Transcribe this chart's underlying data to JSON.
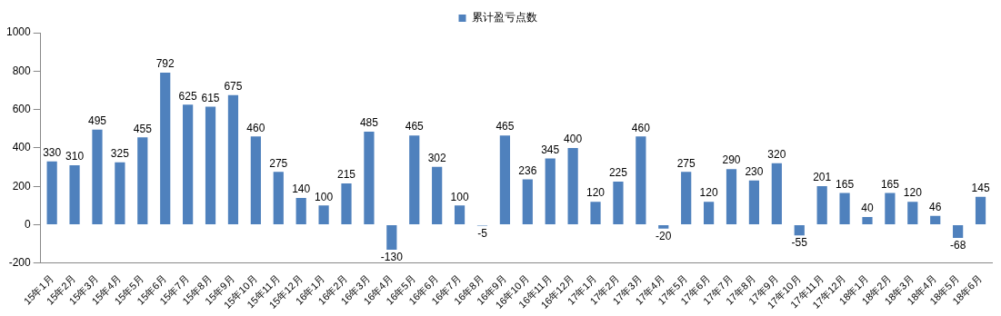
{
  "chart_data": {
    "type": "bar",
    "categories": [
      "15年1月",
      "15年2月",
      "15年3月",
      "15年4月",
      "15年5月",
      "15年6月",
      "15年7月",
      "15年8月",
      "15年9月",
      "15年10月",
      "15年11月",
      "15年12月",
      "16年1月",
      "16年2月",
      "16年3月",
      "16年4月",
      "16年5月",
      "16年6月",
      "16年7月",
      "16年8月",
      "16年9月",
      "16年10月",
      "16年11月",
      "16年12月",
      "17年1月",
      "17年2月",
      "17年3月",
      "17年4月",
      "17年5月",
      "17年6月",
      "17年7月",
      "17年8月",
      "17年9月",
      "17年10月",
      "17年11月",
      "17年12月",
      "18年1月",
      "18年2月",
      "18年3月",
      "18年4月",
      "18年5月",
      "18年6月"
    ],
    "series": [
      {
        "name": "累计盈亏点数",
        "color": "#4f81bd",
        "values": [
          330,
          310,
          495,
          325,
          455,
          792,
          625,
          615,
          675,
          460,
          275,
          140,
          100,
          215,
          485,
          -130,
          465,
          302,
          100,
          -5,
          465,
          236,
          345,
          400,
          120,
          225,
          460,
          -20,
          275,
          120,
          290,
          230,
          320,
          -55,
          201,
          165,
          40,
          165,
          120,
          46,
          -68,
          145
        ]
      }
    ],
    "ylim": [
      -200,
      1000
    ],
    "yticks": [
      -200,
      0,
      200,
      400,
      600,
      800,
      1000
    ],
    "data_labels": true,
    "legend": "top",
    "grid": false
  }
}
